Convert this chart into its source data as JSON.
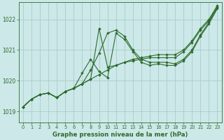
{
  "title": "Graphe pression niveau de la mer (hPa)",
  "bg_color": "#cce8e8",
  "grid_color": "#aacccc",
  "line_color": "#2d6b2d",
  "xlim": [
    -0.5,
    23.5
  ],
  "ylim": [
    1018.65,
    1022.55
  ],
  "yticks": [
    1019,
    1020,
    1021,
    1022
  ],
  "xticks": [
    0,
    1,
    2,
    3,
    4,
    5,
    6,
    7,
    8,
    9,
    10,
    11,
    12,
    13,
    14,
    15,
    16,
    17,
    18,
    19,
    20,
    21,
    22,
    23
  ],
  "series": [
    {
      "y": [
        1019.15,
        1019.4,
        1019.55,
        1019.6,
        1019.45,
        1019.65,
        1019.75,
        1019.9,
        1020.05,
        1020.2,
        1020.35,
        1020.5,
        1020.6,
        1020.7,
        1020.75,
        1020.8,
        1020.85,
        1020.85,
        1020.85,
        1021.0,
        1021.3,
        1021.7,
        1022.0,
        1022.45
      ]
    },
    {
      "y": [
        1019.15,
        1019.4,
        1019.55,
        1019.6,
        1019.45,
        1019.65,
        1019.75,
        1019.9,
        1020.05,
        1021.7,
        1020.45,
        1020.5,
        1020.6,
        1020.65,
        1020.7,
        1020.75,
        1020.75,
        1020.75,
        1020.75,
        1020.95,
        1021.25,
        1021.65,
        1021.95,
        1022.4
      ]
    },
    {
      "y": [
        1019.15,
        1019.4,
        1019.55,
        1019.6,
        1019.45,
        1019.65,
        1019.75,
        1019.9,
        1020.35,
        1020.9,
        1021.55,
        1021.65,
        1021.45,
        1021.0,
        1020.7,
        1020.6,
        1020.6,
        1020.6,
        1020.55,
        1020.7,
        1021.0,
        1021.5,
        1021.9,
        1022.4
      ]
    },
    {
      "y": [
        1019.15,
        1019.4,
        1019.55,
        1019.6,
        1019.45,
        1019.65,
        1019.75,
        1020.25,
        1020.7,
        1020.3,
        1020.1,
        1021.55,
        1021.35,
        1020.95,
        1020.6,
        1020.5,
        1020.55,
        1020.5,
        1020.5,
        1020.65,
        1020.95,
        1021.45,
        1021.85,
        1022.35
      ]
    }
  ]
}
